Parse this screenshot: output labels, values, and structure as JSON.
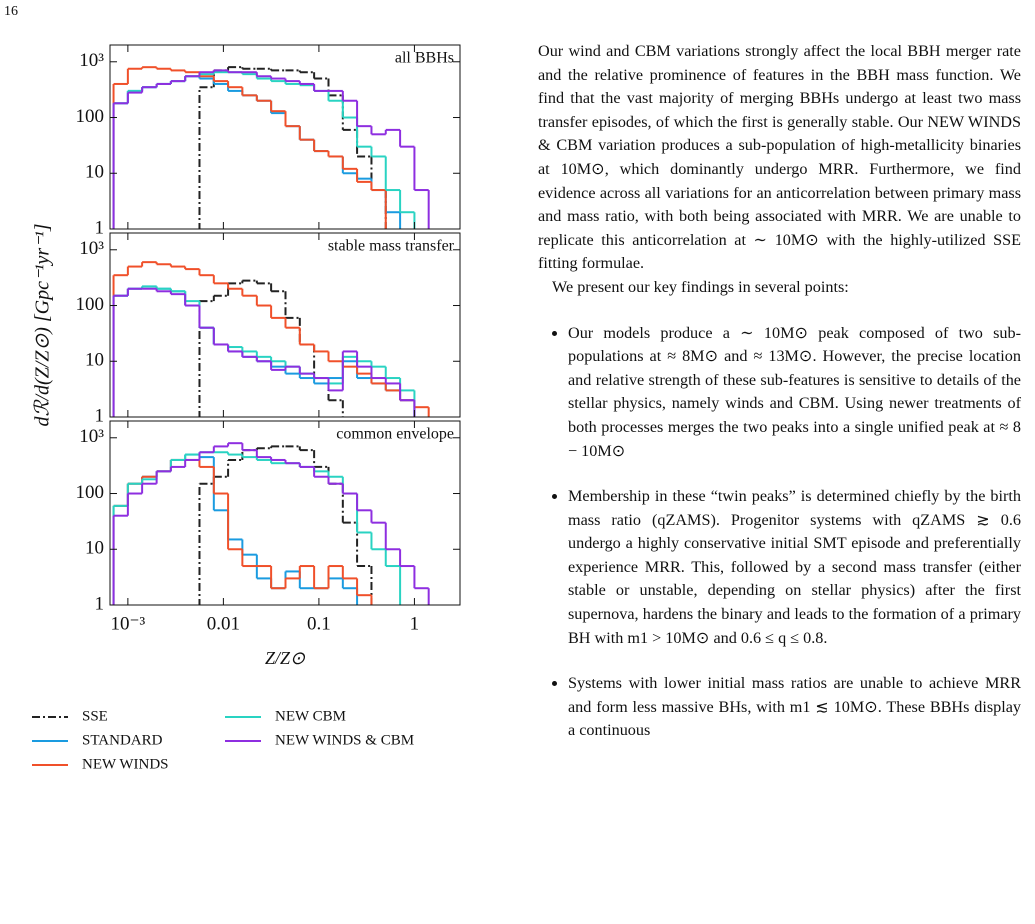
{
  "page_number": "16",
  "chart_data": [
    {
      "type": "histogram",
      "annotation": "all BBHs",
      "log_x": true,
      "log_y": true,
      "show_xtick_labels": false,
      "legend": "below",
      "xlim": [
        0.00065,
        3
      ],
      "ylim": [
        1,
        2000
      ],
      "xticks": [
        0.001,
        0.01,
        0.1,
        1
      ],
      "yticks": [
        1,
        10,
        100,
        {
          "value": 1000,
          "label": "10³"
        }
      ],
      "bins": [
        0.000708,
        0.001,
        0.00141,
        0.002,
        0.00282,
        0.00398,
        0.00562,
        0.00794,
        0.0112,
        0.0158,
        0.0224,
        0.0316,
        0.0447,
        0.0631,
        0.0891,
        0.126,
        0.178,
        0.251,
        0.355,
        0.501,
        0.708,
        1,
        1.41,
        2,
        2.82
      ],
      "series": [
        {
          "name": "SSE",
          "color": "#222222",
          "dash": "dashdot",
          "values": [
            null,
            null,
            null,
            null,
            null,
            null,
            350,
            700,
            800,
            750,
            750,
            700,
            700,
            650,
            500,
            250,
            60,
            20,
            5,
            null,
            null,
            null,
            null,
            null
          ]
        },
        {
          "name": "STANDARD",
          "color": "#1a9be0",
          "values": [
            180,
            300,
            350,
            400,
            450,
            550,
            500,
            400,
            300,
            250,
            200,
            120,
            70,
            40,
            25,
            20,
            10,
            8,
            5,
            2,
            null,
            null,
            null,
            null
          ]
        },
        {
          "name": "NEW WINDS",
          "color": "#f0502a",
          "values": [
            400,
            750,
            800,
            750,
            700,
            650,
            550,
            450,
            350,
            250,
            200,
            130,
            70,
            40,
            25,
            20,
            12,
            7,
            5,
            null,
            null,
            null,
            null,
            null
          ]
        },
        {
          "name": "NEW CBM",
          "color": "#29d3c2",
          "values": [
            180,
            300,
            350,
            400,
            450,
            550,
            600,
            650,
            650,
            600,
            500,
            450,
            400,
            380,
            300,
            200,
            100,
            30,
            20,
            5,
            2,
            null,
            null,
            null
          ]
        },
        {
          "name": "NEW WINDS & CBM",
          "color": "#8e2ee0",
          "values": [
            180,
            280,
            350,
            400,
            450,
            550,
            650,
            700,
            650,
            650,
            550,
            500,
            450,
            400,
            300,
            300,
            200,
            70,
            50,
            60,
            30,
            5,
            null,
            null
          ]
        }
      ]
    },
    {
      "type": "histogram",
      "annotation": "stable mass transfer",
      "log_x": true,
      "log_y": true,
      "show_xtick_labels": false,
      "ylabel": "dℛ/d(Z/Z⊙) [Gpc⁻¹yr⁻¹]",
      "xlim": [
        0.00065,
        3
      ],
      "ylim": [
        1,
        2000
      ],
      "xticks": [
        0.001,
        0.01,
        0.1,
        1
      ],
      "yticks": [
        1,
        10,
        100,
        {
          "value": 1000,
          "label": "10³"
        }
      ],
      "bins": [
        0.000708,
        0.001,
        0.00141,
        0.002,
        0.00282,
        0.00398,
        0.00562,
        0.00794,
        0.0112,
        0.0158,
        0.0224,
        0.0316,
        0.0447,
        0.0631,
        0.0891,
        0.126,
        0.178,
        0.251,
        0.355,
        0.501,
        0.708,
        1,
        1.41,
        2,
        2.82
      ],
      "series": [
        {
          "color": "#222222",
          "dash": "dashdot",
          "values": [
            null,
            null,
            null,
            null,
            null,
            null,
            120,
            150,
            250,
            280,
            250,
            180,
            60,
            20,
            5,
            2,
            null,
            null,
            null,
            null,
            null,
            null,
            null,
            null
          ]
        },
        {
          "color": "#1a9be0",
          "values": [
            150,
            200,
            220,
            200,
            180,
            100,
            40,
            20,
            15,
            12,
            10,
            8,
            6,
            5,
            4,
            5,
            10,
            5,
            4,
            3,
            2,
            null,
            null,
            null
          ]
        },
        {
          "color": "#f0502a",
          "values": [
            350,
            500,
            600,
            550,
            500,
            450,
            350,
            250,
            200,
            150,
            100,
            60,
            40,
            20,
            15,
            10,
            8,
            6,
            4,
            3,
            2,
            1.5,
            null,
            null
          ]
        },
        {
          "color": "#29d3c2",
          "values": [
            150,
            200,
            220,
            200,
            180,
            120,
            40,
            20,
            18,
            15,
            12,
            10,
            8,
            6,
            5,
            4,
            12,
            10,
            8,
            5,
            3,
            null,
            null,
            null
          ]
        },
        {
          "color": "#8e2ee0",
          "values": [
            150,
            200,
            200,
            180,
            160,
            100,
            40,
            20,
            15,
            12,
            10,
            7,
            8,
            6,
            5,
            3,
            15,
            8,
            5,
            4,
            2,
            null,
            null,
            null
          ]
        }
      ]
    },
    {
      "type": "histogram",
      "annotation": "common envelope",
      "log_x": true,
      "log_y": true,
      "show_xtick_labels": true,
      "xlabel": "Z/Z⊙",
      "xlim": [
        0.00065,
        3
      ],
      "ylim": [
        1,
        2000
      ],
      "xticks": [
        {
          "value": 0.001,
          "label": "10⁻³"
        },
        0.01,
        0.1,
        1
      ],
      "yticks": [
        1,
        10,
        100,
        {
          "value": 1000,
          "label": "10³"
        }
      ],
      "bins": [
        0.000708,
        0.001,
        0.00141,
        0.002,
        0.00282,
        0.00398,
        0.00562,
        0.00794,
        0.0112,
        0.0158,
        0.0224,
        0.0316,
        0.0447,
        0.0631,
        0.0891,
        0.126,
        0.178,
        0.251,
        0.355,
        0.501,
        0.708,
        1,
        1.41,
        2,
        2.82
      ],
      "series": [
        {
          "color": "#222222",
          "dash": "dashdot",
          "values": [
            null,
            null,
            null,
            null,
            null,
            null,
            150,
            200,
            400,
            600,
            650,
            700,
            700,
            600,
            300,
            150,
            30,
            5,
            null,
            null,
            null,
            null,
            null,
            null
          ]
        },
        {
          "color": "#1a9be0",
          "values": [
            60,
            150,
            200,
            250,
            400,
            500,
            450,
            50,
            15,
            8,
            3,
            2,
            4,
            2,
            2,
            3,
            2,
            null,
            null,
            null,
            null,
            null,
            null,
            null
          ]
        },
        {
          "color": "#f0502a",
          "values": [
            60,
            150,
            200,
            250,
            400,
            400,
            300,
            100,
            10,
            5,
            5,
            2,
            3,
            5,
            2,
            5,
            3,
            1.5,
            null,
            null,
            null,
            null,
            null,
            null
          ]
        },
        {
          "color": "#29d3c2",
          "values": [
            60,
            150,
            180,
            250,
            400,
            500,
            550,
            550,
            500,
            450,
            400,
            350,
            350,
            300,
            250,
            200,
            100,
            20,
            10,
            5,
            null,
            null,
            null,
            null
          ]
        },
        {
          "color": "#8e2ee0",
          "values": [
            40,
            100,
            150,
            250,
            300,
            400,
            550,
            700,
            800,
            600,
            450,
            400,
            350,
            300,
            200,
            150,
            100,
            50,
            30,
            10,
            5,
            2,
            null,
            null
          ]
        }
      ]
    }
  ],
  "text": {
    "paragraphs": [
      "Our wind and CBM variations strongly affect the local BBH merger rate and the relative prominence of features in the BBH mass function. We find that the vast majority of merging BBHs undergo at least two mass transfer episodes, of which the first is generally stable. Our NEW WINDS & CBM variation produces a sub-population of high-metallicity binaries at 10M⊙, which dominantly undergo MRR. Furthermore, we find evidence across all variations for an anticorrelation between primary mass and mass ratio, with both being associated with MRR. We are unable to replicate this anticorrelation at ∼ 10M⊙ with the highly-utilized SSE fitting formulae.",
      "We present our key findings in several points:"
    ],
    "bullets": [
      "Our models produce a ∼ 10M⊙ peak composed of two sub-populations at ≈ 8M⊙ and ≈ 13M⊙. However, the precise location and relative strength of these sub-features is sensitive to details of the stellar physics, namely winds and CBM. Using newer treatments of both processes merges the two peaks into a single unified peak at ≈ 8 − 10M⊙",
      "Membership in these “twin peaks” is determined chiefly by the birth mass ratio (qZAMS). Progenitor systems with qZAMS ≳ 0.6 undergo a highly conservative initial SMT episode and preferentially experience MRR. This, followed by a second mass transfer (either stable or unstable, depending on stellar physics) after the first supernova, hardens the binary and leads to the formation of a primary BH with m1 > 10M⊙ and 0.6 ≤ q ≤ 0.8.",
      "Systems with lower initial mass ratios are unable to achieve MRR and form less massive BHs, with m1 ≲ 10M⊙. These BBHs display a continuous"
    ]
  }
}
